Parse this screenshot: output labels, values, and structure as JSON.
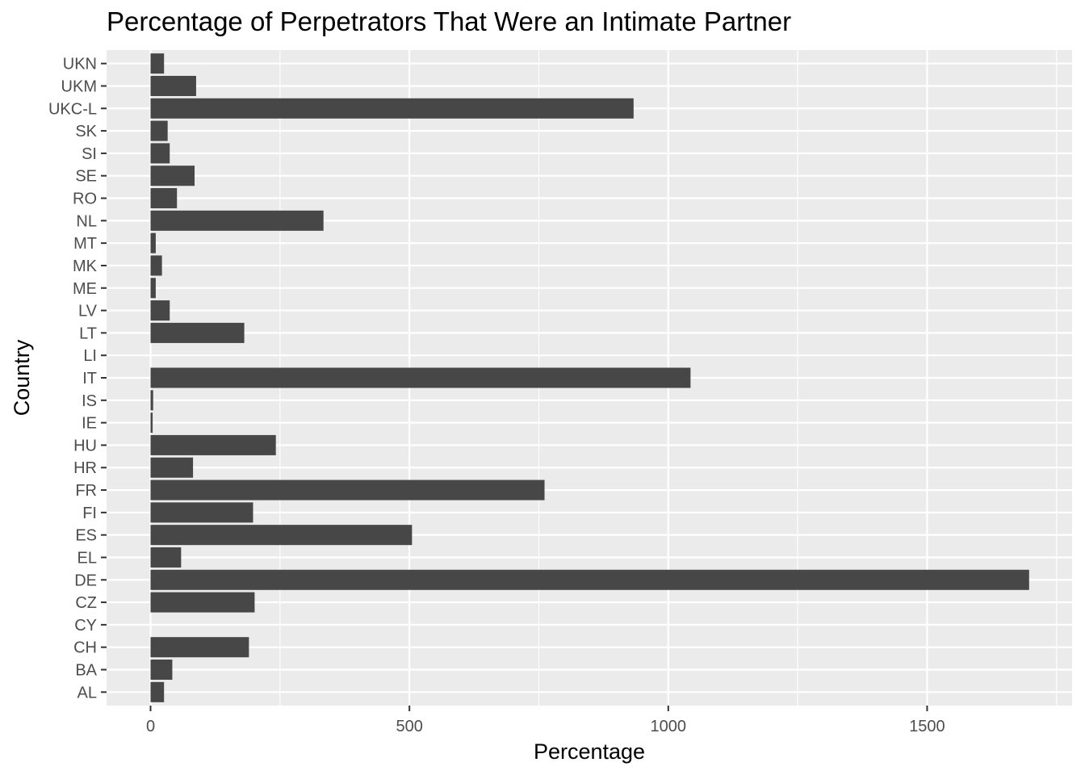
{
  "chart_data": {
    "type": "bar",
    "orientation": "horizontal",
    "title": "Percentage of Perpetrators That Were an Intimate Partner",
    "xlabel": "Percentage",
    "ylabel": "Country",
    "categories": [
      "AL",
      "BA",
      "CH",
      "CY",
      "CZ",
      "DE",
      "EL",
      "ES",
      "FI",
      "FR",
      "HR",
      "HU",
      "IE",
      "IS",
      "IT",
      "LI",
      "LT",
      "LV",
      "ME",
      "MK",
      "MT",
      "NL",
      "RO",
      "SE",
      "SI",
      "SK",
      "UKC-L",
      "UKM",
      "UKN"
    ],
    "values": [
      26,
      42,
      190,
      0,
      201,
      1697,
      59,
      505,
      198,
      761,
      82,
      242,
      4,
      5,
      1043,
      0,
      181,
      37,
      10,
      22,
      10,
      334,
      51,
      85,
      37,
      33,
      933,
      88,
      26
    ],
    "xlim": [
      -85,
      1780
    ],
    "x_ticks": [
      0,
      500,
      1000,
      1500
    ],
    "x_tick_labels": [
      "0",
      "500",
      "1000",
      "1500"
    ],
    "grid": true,
    "colors": {
      "bar": "#474747",
      "panel": "#ebebeb",
      "grid": "#ffffff",
      "tick_text": "#4d4d4d"
    }
  }
}
